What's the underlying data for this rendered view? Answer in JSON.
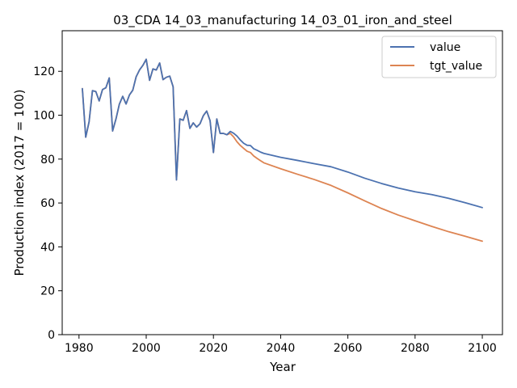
{
  "chart_data": {
    "type": "line",
    "title": "03_CDA 14_03_manufacturing 14_03_01_iron_and_steel",
    "xlabel": "Year",
    "ylabel": "Production index (2017 = 100)",
    "xlim": [
      1975,
      2106
    ],
    "ylim": [
      0,
      138.5
    ],
    "xticks": [
      1980,
      2000,
      2020,
      2040,
      2060,
      2080,
      2100
    ],
    "yticks": [
      0,
      20,
      40,
      60,
      80,
      100,
      120
    ],
    "grid": false,
    "legend": "top-right",
    "series": [
      {
        "name": "value",
        "color": "#4c72b0",
        "x": [
          1981,
          1982,
          1983,
          1984,
          1985,
          1986,
          1987,
          1988,
          1989,
          1990,
          1991,
          1992,
          1993,
          1994,
          1995,
          1996,
          1997,
          1998,
          1999,
          2000,
          2001,
          2002,
          2003,
          2004,
          2005,
          2006,
          2007,
          2008,
          2009,
          2010,
          2011,
          2012,
          2013,
          2014,
          2015,
          2016,
          2017,
          2018,
          2019,
          2020,
          2021,
          2022,
          2023,
          2024,
          2025,
          2026,
          2027,
          2028,
          2029,
          2030,
          2031,
          2032,
          2033,
          2034,
          2035,
          2040,
          2045,
          2050,
          2055,
          2060,
          2065,
          2070,
          2075,
          2080,
          2085,
          2090,
          2095,
          2100
        ],
        "y": [
          112.1,
          90,
          97,
          111.2,
          110.8,
          106.5,
          111.7,
          112.5,
          117,
          92.8,
          98.3,
          105,
          108.6,
          105.1,
          109.2,
          111.4,
          117.5,
          120.6,
          122.7,
          125.5,
          115.9,
          121.1,
          120.6,
          123.8,
          116.2,
          117.3,
          117.8,
          113,
          70.5,
          98.3,
          97.7,
          102.1,
          94,
          96.5,
          94.6,
          96.1,
          99.8,
          101.9,
          97.5,
          83,
          98.3,
          91.7,
          91.7,
          91.1,
          92.6,
          91.8,
          90.5,
          88.7,
          87.2,
          86.3,
          86.2,
          84.7,
          84,
          83.2,
          82.6,
          80.8,
          79.4,
          77.9,
          76.5,
          74.1,
          71.3,
          68.9,
          66.8,
          65.1,
          63.8,
          62.1,
          60.1,
          57.9
        ]
      },
      {
        "name": "tgt_value",
        "color": "#dd8452",
        "x": [
          1981,
          1982,
          1983,
          1984,
          1985,
          1986,
          1987,
          1988,
          1989,
          1990,
          1991,
          1992,
          1993,
          1994,
          1995,
          1996,
          1997,
          1998,
          1999,
          2000,
          2001,
          2002,
          2003,
          2004,
          2005,
          2006,
          2007,
          2008,
          2009,
          2010,
          2011,
          2012,
          2013,
          2014,
          2015,
          2016,
          2017,
          2018,
          2019,
          2020,
          2021,
          2022,
          2023,
          2024,
          2025,
          2026,
          2027,
          2028,
          2029,
          2030,
          2031,
          2032,
          2033,
          2034,
          2035,
          2040,
          2045,
          2050,
          2055,
          2060,
          2065,
          2070,
          2075,
          2080,
          2085,
          2090,
          2095,
          2100
        ],
        "y": [
          112.1,
          90,
          97,
          111.2,
          110.8,
          106.5,
          111.7,
          112.5,
          117,
          92.8,
          98.3,
          105,
          108.6,
          105.1,
          109.2,
          111.4,
          117.5,
          120.6,
          122.7,
          125.5,
          115.9,
          121.1,
          120.6,
          123.8,
          116.2,
          117.3,
          117.8,
          113,
          70.5,
          98.3,
          97.7,
          102.1,
          94,
          96.5,
          94.6,
          96.1,
          99.8,
          101.9,
          97.5,
          83,
          98.3,
          91.7,
          91.7,
          91.1,
          91.7,
          90.1,
          87.9,
          86.2,
          84.9,
          83.6,
          83,
          81.4,
          80.3,
          79.3,
          78.3,
          75.6,
          73.1,
          70.7,
          68,
          64.6,
          61,
          57.5,
          54.5,
          51.9,
          49.3,
          46.9,
          44.8,
          42.6
        ]
      }
    ]
  }
}
